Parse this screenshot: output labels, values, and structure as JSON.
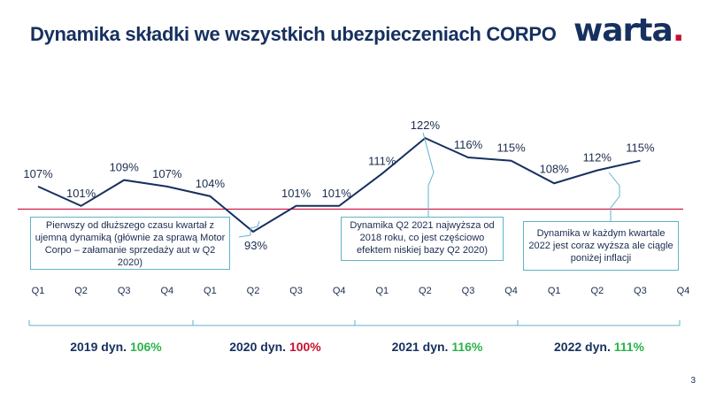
{
  "title": "Dynamika składki we wszystkich ubezpieczeniach CORPO",
  "logo": {
    "text": "warta",
    "dot": "."
  },
  "page_number": "3",
  "chart_data": {
    "type": "line",
    "categories": [
      "Q1",
      "Q2",
      "Q3",
      "Q4",
      "Q1",
      "Q2",
      "Q3",
      "Q4",
      "Q1",
      "Q2",
      "Q3",
      "Q4",
      "Q1",
      "Q2",
      "Q3",
      "Q4"
    ],
    "values": [
      107,
      101,
      109,
      107,
      104,
      93,
      101,
      101,
      111,
      122,
      116,
      115,
      108,
      112,
      115,
      null
    ],
    "value_labels": [
      "107%",
      "101%",
      "109%",
      "107%",
      "104%",
      "93%",
      "101%",
      "101%",
      "111%",
      "122%",
      "116%",
      "115%",
      "108%",
      "112%",
      "115%",
      ""
    ],
    "reference_line": 100,
    "ylim": [
      90,
      125
    ],
    "line_color": "#16305f",
    "reference_color": "#c8103e",
    "callout_color": "#5fb3c9",
    "groups": [
      {
        "label": "2019 dyn. ",
        "value": "106%",
        "color": "#2bb34a"
      },
      {
        "label": "2020 dyn. ",
        "value": "100%",
        "color": "#c8102e"
      },
      {
        "label": "2021 dyn. ",
        "value": "116%",
        "color": "#2bb34a"
      },
      {
        "label": "2022 dyn. ",
        "value": "111%",
        "color": "#2bb34a"
      }
    ],
    "annotations": [
      "Pierwszy od dłuższego czasu kwartał  z ujemną dynamiką (głównie za sprawą Motor Corpo – załamanie sprzedaży aut w Q2 2020)",
      "Dynamika Q2 2021 najwyższa od 2018 roku, co jest częściowo efektem niskiej bazy Q2 2020)",
      "Dynamika  w każdym  kwartale 2022 jest coraz wyższa ale ciągle  poniżej inflacji"
    ]
  }
}
